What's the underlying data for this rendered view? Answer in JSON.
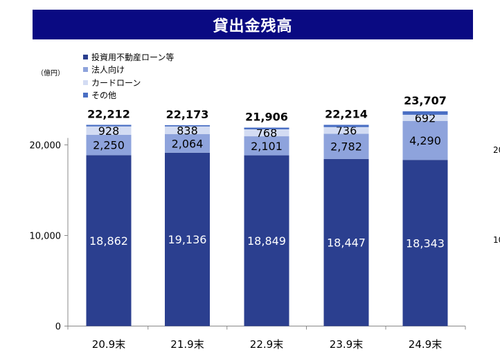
{
  "title": "貸出金残高",
  "unit": "（億円）",
  "edge_fragments": [
    "20",
    "10"
  ],
  "chart_data": {
    "type": "bar",
    "stacked": true,
    "categories": [
      "20.9末",
      "21.9末",
      "22.9末",
      "23.9末",
      "24.9末"
    ],
    "series": [
      {
        "name": "投資用不動産ローン等",
        "values": [
          18862,
          19136,
          18849,
          18447,
          18343
        ],
        "color": "#2b3f8f",
        "label_color": "#ffffff"
      },
      {
        "name": "法人向け",
        "values": [
          2250,
          2064,
          2101,
          2782,
          4290
        ],
        "color": "#8ea3dc",
        "label_color": "#000000"
      },
      {
        "name": "カードローン",
        "values": [
          928,
          838,
          768,
          736,
          692
        ],
        "color": "#d3dcf3",
        "label_color": "#000000"
      },
      {
        "name": "その他",
        "values": [
          172,
          135,
          188,
          249,
          382
        ],
        "color": "#4a6fc4",
        "label_color": null
      }
    ],
    "labels": [
      [
        "18,862",
        "19,136",
        "18,849",
        "18,447",
        "18,343"
      ],
      [
        "2,250",
        "2,064",
        "2,101",
        "2,782",
        "4,290"
      ],
      [
        "928",
        "838",
        "768",
        "736",
        "692"
      ],
      null
    ],
    "totals": [
      22212,
      22173,
      21906,
      22214,
      23707
    ],
    "total_labels": [
      "22,212",
      "22,173",
      "21,906",
      "22,214",
      "23,707"
    ],
    "ylim": [
      0,
      25000
    ],
    "yticks": [
      0,
      10000,
      20000
    ],
    "ytick_labels": [
      "0",
      "10,000",
      "20,000"
    ],
    "grid": false,
    "legend_position": "top-left"
  }
}
